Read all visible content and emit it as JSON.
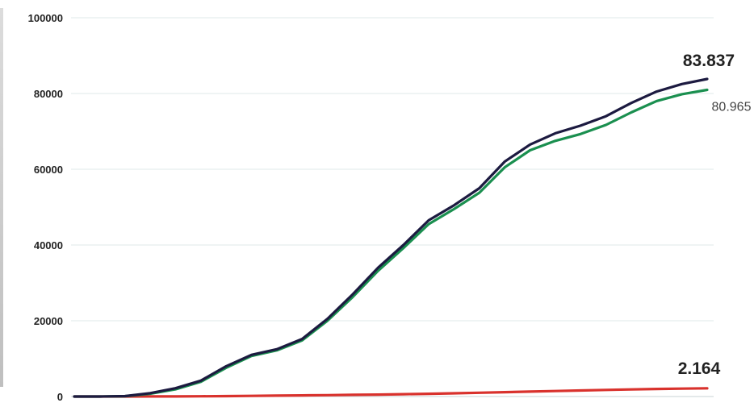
{
  "chart_data": {
    "type": "line",
    "title": "",
    "xlabel": "",
    "ylabel": "",
    "ylim": [
      0,
      100000
    ],
    "yticks": [
      0,
      20000,
      40000,
      60000,
      80000,
      100000
    ],
    "grid": true,
    "legend": "none",
    "x": [
      0,
      4,
      8,
      12,
      16,
      20,
      24,
      28,
      32,
      36,
      40,
      44,
      48,
      52,
      56,
      60,
      64,
      68,
      72,
      76,
      80,
      84,
      88,
      92,
      96,
      100
    ],
    "series": [
      {
        "color": "#1c1a40",
        "values": [
          0,
          0,
          100,
          900,
          2200,
          4200,
          8000,
          11000,
          12500,
          15200,
          20500,
          27000,
          34000,
          40000,
          46500,
          50500,
          55000,
          62000,
          66500,
          69500,
          71500,
          74000,
          77500,
          80500,
          82500,
          83837
        ],
        "end_label": "83.837"
      },
      {
        "color": "#1a8f4f",
        "values": [
          0,
          0,
          80,
          750,
          1900,
          3900,
          7600,
          10700,
          12200,
          14800,
          20000,
          26300,
          33200,
          39200,
          45500,
          49500,
          53800,
          60500,
          65000,
          67500,
          69300,
          71700,
          75000,
          78000,
          79800,
          80965
        ],
        "end_label": "80.965"
      },
      {
        "color": "#d9322d",
        "values": [
          0,
          0,
          5,
          15,
          30,
          60,
          110,
          170,
          230,
          290,
          360,
          440,
          520,
          620,
          730,
          860,
          1000,
          1150,
          1300,
          1450,
          1600,
          1750,
          1880,
          1990,
          2080,
          2164
        ],
        "end_label": "2.164"
      }
    ]
  }
}
